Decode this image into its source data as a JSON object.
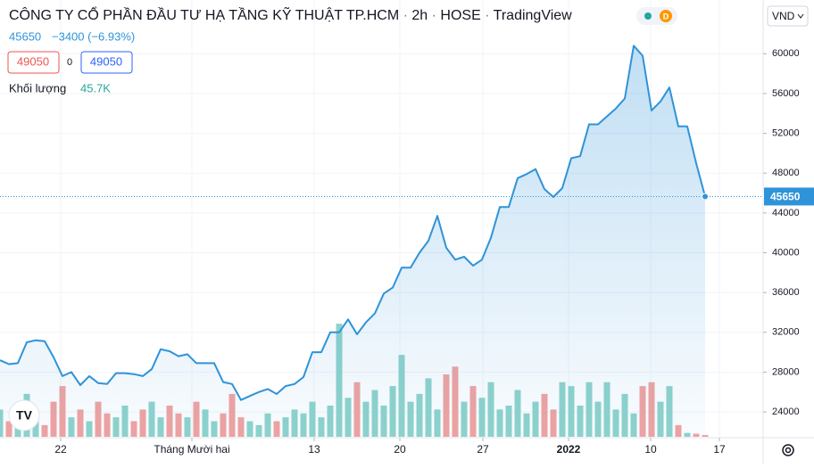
{
  "header": {
    "title": "CÔNG TY CỔ PHẦN ĐẦU TƯ HẠ TẦNG KỸ THUẬT TP.HCM",
    "interval": "2h",
    "exchange": "HOSE",
    "source": "TradingView",
    "change": "−3400 (−6.93%)",
    "sell": "49050",
    "spread": "0",
    "buy": "49050",
    "volume_label": "Khối lượng",
    "volume_value": "45.7K",
    "currency": "VND"
  },
  "chart_data": {
    "type": "line",
    "xlim": [
      0,
      85.5
    ],
    "ylim": [
      21500,
      65400
    ],
    "y2lim": [
      0,
      11200
    ],
    "yticks": [
      24000,
      28000,
      32000,
      36000,
      40000,
      44000,
      48000,
      52000,
      56000,
      60000
    ],
    "xticks": [
      {
        "value": 6.8,
        "label": "22"
      },
      {
        "value": 21.5,
        "label": "Tháng Mười hai"
      },
      {
        "value": 35.2,
        "label": "13"
      },
      {
        "value": 44.8,
        "label": "20"
      },
      {
        "value": 54.1,
        "label": "27"
      },
      {
        "value": 63.7,
        "label": "2022"
      },
      {
        "value": 72.9,
        "label": "10"
      },
      {
        "value": 80.6,
        "label": "17"
      }
    ],
    "grid": true,
    "up_color": "#8fd3cb",
    "down_color": "#f2a3a0",
    "series": [
      {
        "color": "#2f93d9",
        "values": [
          29200,
          28800,
          28900,
          31000,
          31200,
          31100,
          29500,
          27600,
          28000,
          26700,
          27600,
          26900,
          26800,
          27900,
          27900,
          27800,
          27600,
          28300,
          30300,
          30100,
          29600,
          29800,
          28900,
          28900,
          28900,
          27000,
          26800,
          25200,
          25600,
          26000,
          26300,
          25800,
          26600,
          26800,
          27500,
          30000,
          30000,
          32000,
          32000,
          33300,
          31800,
          33000,
          33900,
          35900,
          36500,
          38500,
          38500,
          40000,
          41200,
          43700,
          40500,
          39300,
          39600,
          38700,
          39300,
          41500,
          44600,
          44600,
          47500,
          47900,
          48400,
          46400,
          45600,
          46500,
          49500,
          49700,
          52900,
          52900,
          53700,
          54500,
          55500,
          60800,
          59800,
          54300,
          55200,
          56600,
          52700,
          52700,
          49000,
          45650
        ]
      },
      {
        "type": "bar",
        "axis": "y2",
        "values": [
          700,
          400,
          300,
          1100,
          600,
          300,
          900,
          1300,
          500,
          700,
          400,
          900,
          600,
          500,
          800,
          400,
          700,
          900,
          500,
          800,
          600,
          500,
          900,
          700,
          400,
          600,
          1100,
          500,
          400,
          300,
          600,
          400,
          500,
          700,
          600,
          900,
          500,
          800,
          2900,
          1000,
          1400,
          900,
          1200,
          800,
          1300,
          2100,
          900,
          1100,
          1500,
          700,
          1600,
          1800,
          900,
          1300,
          1000,
          1400,
          700,
          800,
          1200,
          600,
          900,
          1100,
          700,
          1400,
          1300,
          800,
          1400,
          900,
          1400,
          700,
          1100,
          600,
          1300,
          1400,
          900,
          1300,
          300,
          100,
          80,
          45.7
        ]
      }
    ]
  }
}
